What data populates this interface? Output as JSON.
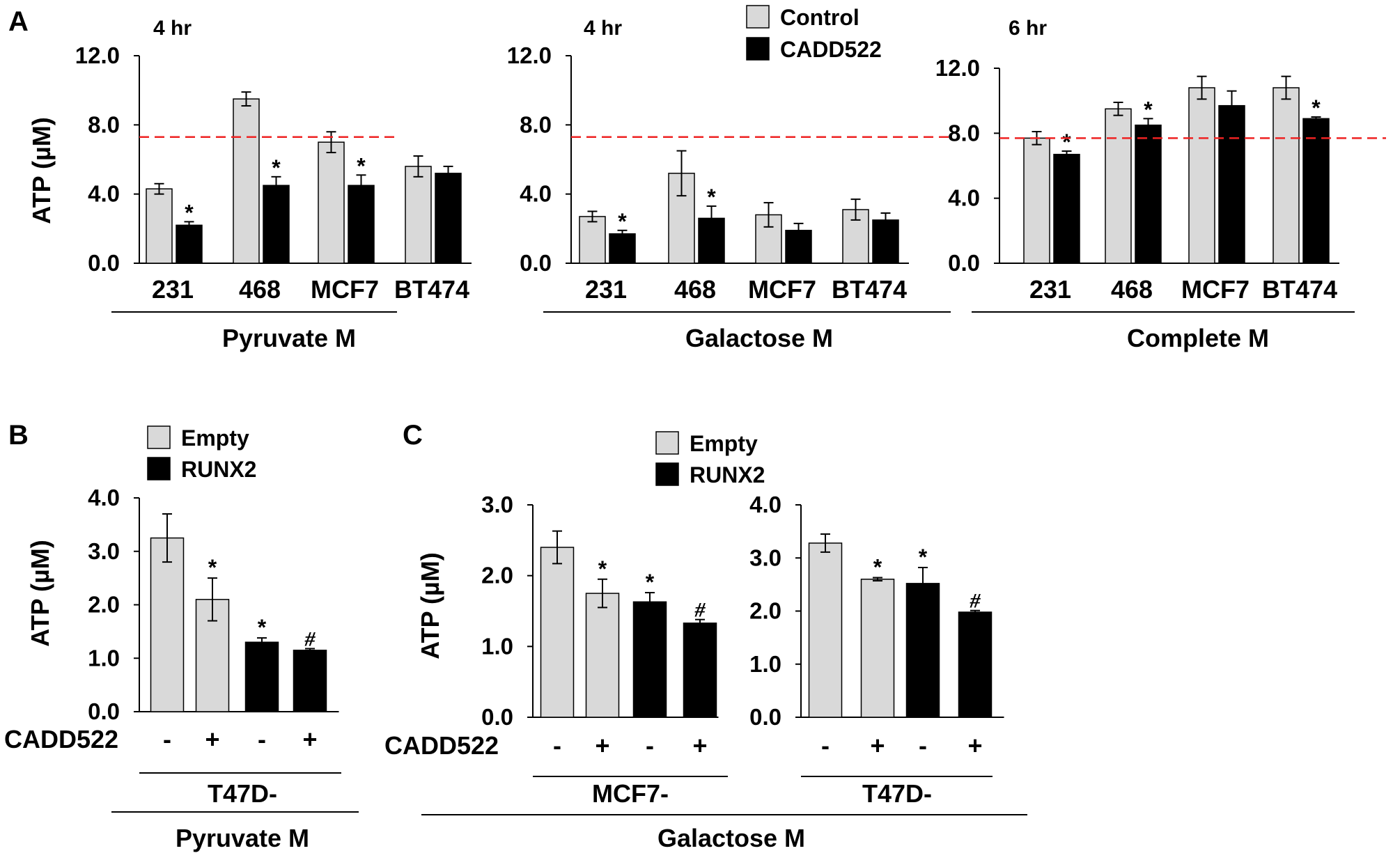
{
  "colors": {
    "light": "#d9d9d9",
    "dark": "#000000",
    "reference_line": "#ee2222"
  },
  "panels": {
    "A": {
      "letter": "A",
      "ylabel": "ATP (µM)",
      "legend": [
        {
          "label": "Control",
          "color": "#d9d9d9"
        },
        {
          "label": "CADD522",
          "color": "#000000"
        }
      ]
    },
    "B": {
      "letter": "B",
      "ylabel": "ATP (µM)",
      "legend": [
        {
          "label": "Empty",
          "color": "#d9d9d9"
        },
        {
          "label": "RUNX2",
          "color": "#000000"
        }
      ],
      "treatment_label": "CADD522",
      "line_label": "T47D-",
      "medium_label": "Pyruvate M"
    },
    "C": {
      "letter": "C",
      "ylabel": "ATP (µM)",
      "legend": [
        {
          "label": "Empty",
          "color": "#d9d9d9"
        },
        {
          "label": "RUNX2",
          "color": "#000000"
        }
      ],
      "treatment_label": "CADD522",
      "medium_label": "Galactose M"
    }
  },
  "chart_data": [
    {
      "id": "A1",
      "type": "bar",
      "time": "4 hr",
      "group_label": "Pyruvate M",
      "categories": [
        "231",
        "468",
        "MCF7",
        "BT474"
      ],
      "series": [
        {
          "name": "Control",
          "values": [
            4.3,
            9.5,
            7.0,
            5.6
          ],
          "errors": [
            0.3,
            0.4,
            0.6,
            0.6
          ]
        },
        {
          "name": "CADD522",
          "values": [
            2.2,
            4.5,
            4.5,
            5.2
          ],
          "errors": [
            0.2,
            0.5,
            0.6,
            0.4
          ]
        }
      ],
      "significance": [
        [
          null,
          null,
          null,
          null
        ],
        [
          "*",
          "*",
          "*",
          null
        ]
      ],
      "yticks": [
        "0.0",
        "4.0",
        "8.0",
        "12.0"
      ],
      "ylim": [
        0,
        12
      ],
      "reference_line": 7.3
    },
    {
      "id": "A2",
      "type": "bar",
      "time": "4 hr",
      "group_label": "Galactose M",
      "categories": [
        "231",
        "468",
        "MCF7",
        "BT474"
      ],
      "series": [
        {
          "name": "Control",
          "values": [
            2.7,
            5.2,
            2.8,
            3.1
          ],
          "errors": [
            0.3,
            1.3,
            0.7,
            0.6
          ]
        },
        {
          "name": "CADD522",
          "values": [
            1.7,
            2.6,
            1.9,
            2.5
          ],
          "errors": [
            0.2,
            0.7,
            0.4,
            0.4
          ]
        }
      ],
      "significance": [
        [
          null,
          null,
          null,
          null
        ],
        [
          "*",
          "*",
          null,
          null
        ]
      ],
      "yticks": [
        "0.0",
        "4.0",
        "8.0",
        "12.0"
      ],
      "ylim": [
        0,
        12
      ],
      "reference_line": 7.3
    },
    {
      "id": "A3",
      "type": "bar",
      "time": "6 hr",
      "group_label": "Complete M",
      "categories": [
        "231",
        "468",
        "MCF7",
        "BT474"
      ],
      "series": [
        {
          "name": "Control",
          "values": [
            7.7,
            9.5,
            10.8,
            10.8
          ],
          "errors": [
            0.4,
            0.4,
            0.7,
            0.7
          ]
        },
        {
          "name": "CADD522",
          "values": [
            6.7,
            8.5,
            9.7,
            8.9
          ],
          "errors": [
            0.2,
            0.4,
            0.9,
            0.1
          ]
        }
      ],
      "significance": [
        [
          null,
          null,
          null,
          null
        ],
        [
          "*",
          "*",
          null,
          "*"
        ]
      ],
      "yticks": [
        "0.0",
        "4.0",
        "8.0",
        "12.0"
      ],
      "ylim": [
        0,
        12
      ],
      "reference_line": 7.7
    },
    {
      "id": "B",
      "type": "bar",
      "line": "T47D-",
      "categories": [
        "-",
        "+",
        "-",
        "+"
      ],
      "values": [
        3.25,
        2.1,
        1.3,
        1.15
      ],
      "errors": [
        0.45,
        0.4,
        0.08,
        0.03
      ],
      "series_names": [
        "Empty",
        "Empty",
        "RUNX2",
        "RUNX2"
      ],
      "significance": [
        null,
        "*",
        "*",
        "#"
      ],
      "yticks": [
        "0.0",
        "1.0",
        "2.0",
        "3.0",
        "4.0"
      ],
      "ylim": [
        0,
        4
      ]
    },
    {
      "id": "C1",
      "type": "bar",
      "line": "MCF7-",
      "categories": [
        "-",
        "+",
        "-",
        "+"
      ],
      "values": [
        2.4,
        1.75,
        1.63,
        1.33
      ],
      "errors": [
        0.23,
        0.2,
        0.13,
        0.05
      ],
      "series_names": [
        "Empty",
        "Empty",
        "RUNX2",
        "RUNX2"
      ],
      "significance": [
        null,
        "*",
        "*",
        "#"
      ],
      "yticks": [
        "0.0",
        "1.0",
        "2.0",
        "3.0"
      ],
      "ylim": [
        0,
        3
      ]
    },
    {
      "id": "C2",
      "type": "bar",
      "line": "T47D-",
      "categories": [
        "-",
        "+",
        "-",
        "+"
      ],
      "values": [
        3.28,
        2.6,
        2.52,
        1.98
      ],
      "errors": [
        0.17,
        0.03,
        0.3,
        0.03
      ],
      "series_names": [
        "Empty",
        "Empty",
        "RUNX2",
        "RUNX2"
      ],
      "significance": [
        null,
        "*",
        "*",
        "#"
      ],
      "yticks": [
        "0.0",
        "1.0",
        "2.0",
        "3.0",
        "4.0"
      ],
      "ylim": [
        0,
        4
      ]
    }
  ]
}
